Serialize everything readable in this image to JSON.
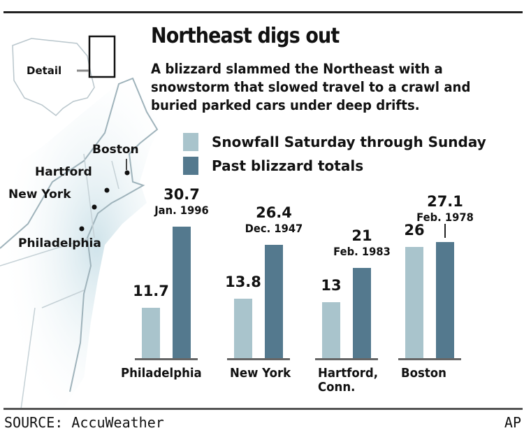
{
  "chart_data": {
    "type": "bar",
    "title": "Northeast digs out",
    "subtitle": "A blizzard slammed the Northeast with a snowstorm that slowed travel to a crawl and buried parked cars under deep drifts.",
    "categories": [
      "Philadelphia",
      "New York",
      "Hartford, Conn.",
      "Boston"
    ],
    "series": [
      {
        "name": "Snowfall Saturday through Sunday",
        "color": "#a9c4cc",
        "values": [
          11.7,
          13.8,
          13,
          26
        ],
        "labels": [
          "11.7",
          "13.8",
          "13",
          "26"
        ]
      },
      {
        "name": "Past blizzard totals",
        "color": "#54798e",
        "values": [
          30.7,
          26.4,
          21,
          27.1
        ],
        "labels": [
          "30.7",
          "26.4",
          "21",
          "27.1"
        ],
        "dates": [
          "Jan. 1996",
          "Dec. 1947",
          "Feb. 1983",
          "Feb. 1978"
        ]
      }
    ],
    "legend_placement": "top",
    "grid": false,
    "ylim": [
      0,
      32
    ]
  },
  "map": {
    "detail_label": "Detail",
    "cities": [
      "Boston",
      "Hartford",
      "New York",
      "Philadelphia"
    ],
    "water_color": "#d6e8ee"
  },
  "footer": {
    "source": "SOURCE:  AccuWeather",
    "credit": "AP"
  }
}
